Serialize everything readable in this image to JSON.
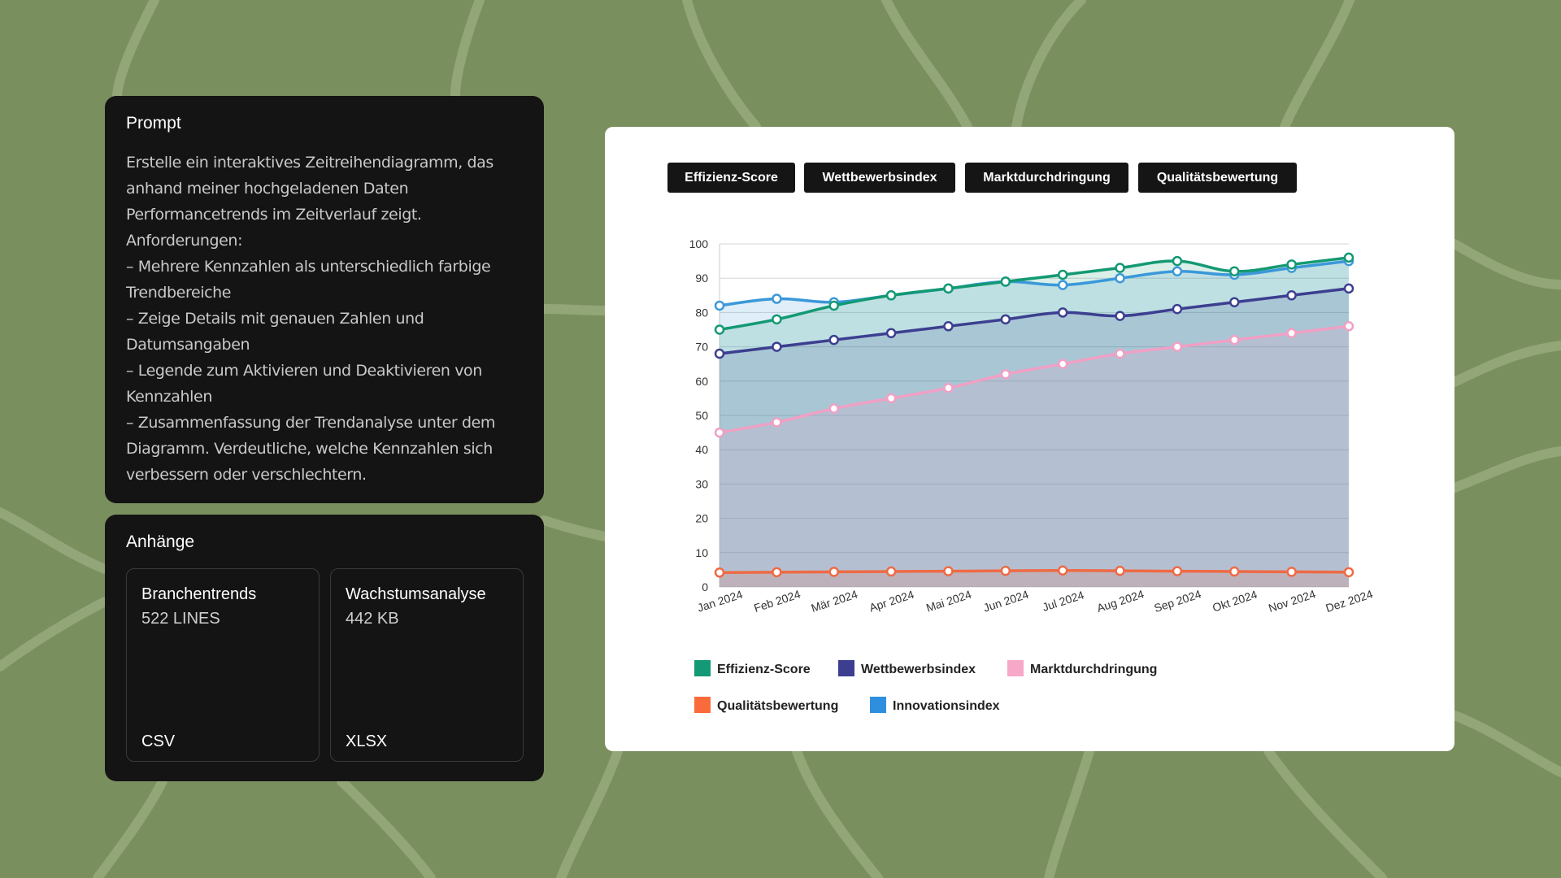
{
  "prompt": {
    "title": "Prompt",
    "text": "Erstelle ein interaktives Zeitreihendiagramm, das anhand meiner hochgeladenen Daten Performancetrends im Zeitverlauf zeigt.\nAnforderungen:\n– Mehrere Kennzahlen als unterschiedlich farbige Trendbereiche\n– Zeige Details mit genauen Zahlen und Datumsangaben\n– Legende zum Aktivieren und Deaktivieren von Kennzahlen\n– Zusammenfassung der Trendanalyse unter dem Diagramm. Verdeutliche, welche Kennzahlen sich verbessern oder verschlechtern."
  },
  "attachments": {
    "title": "Anhänge",
    "files": [
      {
        "name": "Branchentrends",
        "size": "522 LINES",
        "type": "CSV"
      },
      {
        "name": "Wachstumsanalyse",
        "size": "442 KB",
        "type": "XLSX"
      }
    ]
  },
  "tabs": [
    "Effizienz-Score",
    "Wettbewerbsindex",
    "Marktdurchdringung",
    "Qualitätsbewertung"
  ],
  "chart_data": {
    "type": "area",
    "categories": [
      "Jan 2024",
      "Feb 2024",
      "Mär 2024",
      "Apr 2024",
      "Mai 2024",
      "Jun 2024",
      "Jul 2024",
      "Aug 2024",
      "Sep 2024",
      "Okt 2024",
      "Nov 2024",
      "Dez 2024"
    ],
    "ylim": [
      0,
      100
    ],
    "yticks": [
      0,
      10,
      20,
      30,
      40,
      50,
      60,
      70,
      80,
      90,
      100
    ],
    "grid": true,
    "legend_position": "bottom",
    "series": [
      {
        "name": "Innovationsindex",
        "color": "#3b98d9",
        "values": [
          82,
          84,
          83,
          85,
          87,
          89,
          88,
          90,
          92,
          91,
          93,
          95
        ]
      },
      {
        "name": "Effizienz-Score",
        "color": "#139973",
        "values": [
          75,
          78,
          82,
          85,
          87,
          89,
          91,
          93,
          95,
          92,
          94,
          96
        ]
      },
      {
        "name": "Wettbewerbsindex",
        "color": "#3c3f8f",
        "values": [
          68,
          70,
          72,
          74,
          76,
          78,
          80,
          79,
          81,
          83,
          85,
          87
        ]
      },
      {
        "name": "Marktdurchdringung",
        "color": "#f0a0c4",
        "values": [
          45,
          48,
          52,
          55,
          58,
          62,
          65,
          68,
          70,
          72,
          74,
          76
        ]
      },
      {
        "name": "Qualitätsbewertung",
        "color": "#ee6a45",
        "values": [
          4.2,
          4.3,
          4.4,
          4.5,
          4.6,
          4.7,
          4.8,
          4.7,
          4.6,
          4.5,
          4.4,
          4.3
        ]
      }
    ],
    "legend": [
      {
        "name": "Effizienz-Score",
        "color": "#139973"
      },
      {
        "name": "Wettbewerbsindex",
        "color": "#3c3f8f"
      },
      {
        "name": "Marktdurchdringung",
        "color": "#f7a8c8"
      },
      {
        "name": "Qualitätsbewertung",
        "color": "#fa6b3b"
      },
      {
        "name": "Innovationsindex",
        "color": "#2f8fde"
      }
    ]
  }
}
